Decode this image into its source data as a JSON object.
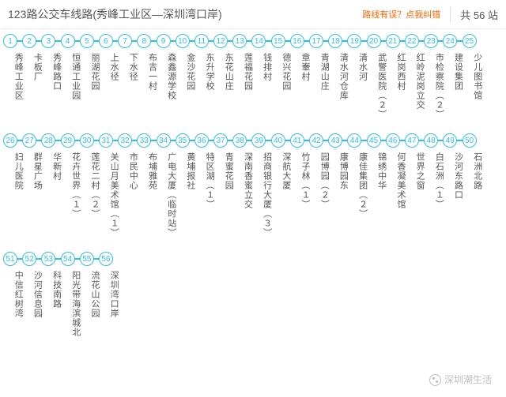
{
  "header": {
    "title": "123路公交车线路(秀峰工业区—深圳湾口岸)",
    "error_link": "路线有误？点我纠错",
    "total_prefix": "共 ",
    "total_count": "56",
    "total_suffix": " 站"
  },
  "style": {
    "circle_border": "#33bde5",
    "circle_text": "#33bde5",
    "line_color": "#33bde5",
    "label_color": "#555555",
    "title_color": "#555555",
    "err_color": "#ff6600",
    "background": "#ffffff",
    "circle_size": 18,
    "segment_len": 6.2,
    "label_fontsize": 11,
    "title_fontsize": 14,
    "per_row": 25
  },
  "stops": [
    {
      "n": 1,
      "name": "秀峰工业区"
    },
    {
      "n": 2,
      "name": "卡板厂"
    },
    {
      "n": 3,
      "name": "秀峰路口"
    },
    {
      "n": 4,
      "name": "恒通工业园"
    },
    {
      "n": 5,
      "name": "丽湖花园"
    },
    {
      "n": 6,
      "name": "上水径"
    },
    {
      "n": 7,
      "name": "下水径"
    },
    {
      "n": 8,
      "name": "布吉一村"
    },
    {
      "n": 9,
      "name": "森鑫源学校"
    },
    {
      "n": 10,
      "name": "金沙花园"
    },
    {
      "n": 11,
      "name": "东升学校"
    },
    {
      "n": 12,
      "name": "东花山庄"
    },
    {
      "n": 13,
      "name": "莲福花园"
    },
    {
      "n": 14,
      "name": "钱排村"
    },
    {
      "n": 15,
      "name": "德兴花园"
    },
    {
      "n": 16,
      "name": "章輋村"
    },
    {
      "n": 17,
      "name": "青湖山庄"
    },
    {
      "n": 18,
      "name": "清水河仓库"
    },
    {
      "n": 19,
      "name": "清水河"
    },
    {
      "n": 20,
      "name": "武警医院（２）"
    },
    {
      "n": 21,
      "name": "红岗西村"
    },
    {
      "n": 22,
      "name": "红岭泥岗立交"
    },
    {
      "n": 23,
      "name": "市检察院（２）"
    },
    {
      "n": 24,
      "name": "建设集团"
    },
    {
      "n": 25,
      "name": "少儿图书馆"
    },
    {
      "n": 26,
      "name": "妇儿医院"
    },
    {
      "n": 27,
      "name": "群星广场"
    },
    {
      "n": 28,
      "name": "华新村"
    },
    {
      "n": 29,
      "name": "花卉世界（１）"
    },
    {
      "n": 30,
      "name": "莲花二村（２）"
    },
    {
      "n": 31,
      "name": "关山月美术馆（１）"
    },
    {
      "n": 32,
      "name": "市民中心"
    },
    {
      "n": 33,
      "name": "布埔雅苑"
    },
    {
      "n": 34,
      "name": "广电大厦（临时站）"
    },
    {
      "n": 35,
      "name": "黄埔报社"
    },
    {
      "n": 36,
      "name": "特区湖（１）"
    },
    {
      "n": 37,
      "name": "青蜜花园"
    },
    {
      "n": 38,
      "name": "深南香蜜立交"
    },
    {
      "n": 39,
      "name": "招商银行大厦（３）"
    },
    {
      "n": 40,
      "name": "深航大厦"
    },
    {
      "n": 41,
      "name": "竹子林（１）"
    },
    {
      "n": 42,
      "name": "园博园（２）"
    },
    {
      "n": 43,
      "name": "康博园东"
    },
    {
      "n": 44,
      "name": "康佳集团（２）"
    },
    {
      "n": 45,
      "name": "锦绣中华"
    },
    {
      "n": 46,
      "name": "何香凝美术馆"
    },
    {
      "n": 47,
      "name": "世界之窗"
    },
    {
      "n": 48,
      "name": "白石洲（１）"
    },
    {
      "n": 49,
      "name": "沙河东路口"
    },
    {
      "n": 50,
      "name": "石洲北路"
    },
    {
      "n": 51,
      "name": "中信红树湾"
    },
    {
      "n": 52,
      "name": "沙河信息园"
    },
    {
      "n": 53,
      "name": "科技南路"
    },
    {
      "n": 54,
      "name": "阳光带海滨城北"
    },
    {
      "n": 55,
      "name": "流花山公园"
    },
    {
      "n": 56,
      "name": "深圳湾口岸"
    }
  ],
  "watermark": {
    "text": "深圳潮生活"
  }
}
